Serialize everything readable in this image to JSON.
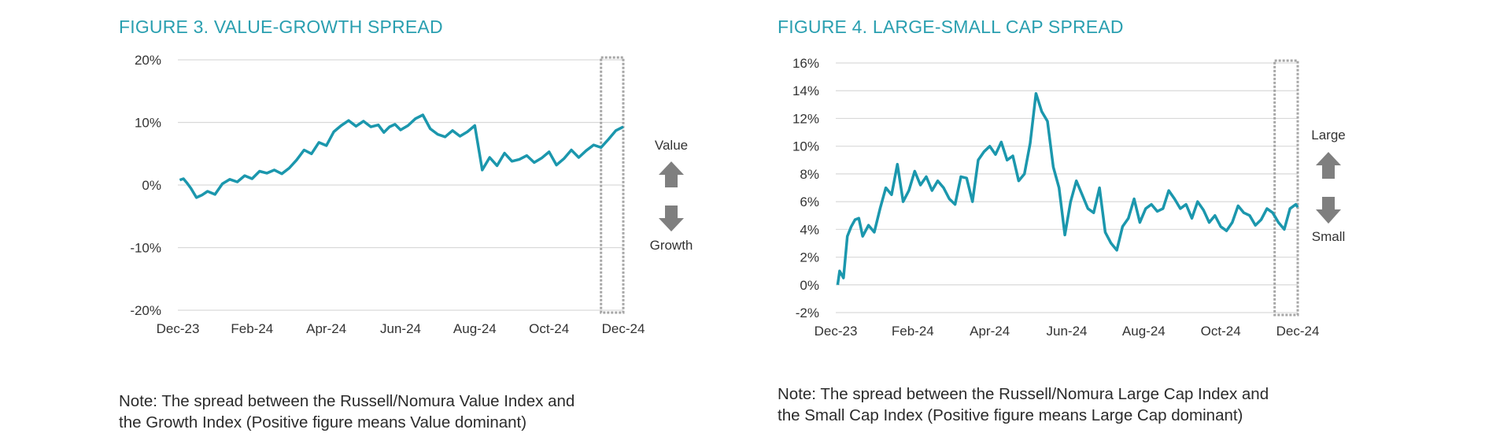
{
  "colors": {
    "title": "#2a9fb0",
    "line": "#1b97ad",
    "grid": "#d9d9d9",
    "box": "#a6a6a6",
    "arrow": "#7f7f7f"
  },
  "figures": [
    {
      "title": "FIGURE 3. VALUE-GROWTH SPREAD",
      "note_line1": "Note: The spread between the Russell/Nomura Value Index and",
      "note_line2": "the Growth Index (Positive figure means Value dominant)",
      "up_label": "Value",
      "down_label": "Growth",
      "up_icon": "arrow-up-icon",
      "down_icon": "arrow-down-icon"
    },
    {
      "title": "FIGURE 4. LARGE-SMALL CAP SPREAD",
      "note_line1": "Note: The spread between the Russell/Nomura Large Cap Index and",
      "note_line2": "the Small Cap Index (Positive figure means Large Cap dominant)",
      "up_label": "Large",
      "down_label": "Small",
      "up_icon": "arrow-up-icon",
      "down_icon": "arrow-down-icon"
    }
  ],
  "chart_data": [
    {
      "type": "line",
      "title": "FIGURE 3. VALUE-GROWTH SPREAD",
      "xlabel": "",
      "ylabel": "",
      "x_tick_labels": [
        "Dec-23",
        "Feb-24",
        "Apr-24",
        "Jun-24",
        "Aug-24",
        "Oct-24",
        "Dec-24"
      ],
      "y_tick_values": [
        20,
        10,
        0,
        -10,
        -20
      ],
      "y_tick_labels": [
        "20%",
        "10%",
        "0%",
        "-10%",
        "-20%"
      ],
      "ylim": [
        -20,
        20
      ],
      "xlim_months": [
        0,
        12
      ],
      "grid": true,
      "highlight_months": [
        11.4,
        12.0
      ],
      "series": [
        {
          "name": "Value-Growth spread (%)",
          "x_months": [
            0.05,
            0.15,
            0.25,
            0.35,
            0.5,
            0.65,
            0.8,
            1.0,
            1.2,
            1.4,
            1.6,
            1.8,
            2.0,
            2.2,
            2.4,
            2.6,
            2.8,
            3.0,
            3.2,
            3.4,
            3.6,
            3.8,
            4.0,
            4.2,
            4.4,
            4.6,
            4.8,
            5.0,
            5.2,
            5.4,
            5.55,
            5.7,
            5.85,
            6.0,
            6.2,
            6.4,
            6.6,
            6.8,
            7.0,
            7.2,
            7.4,
            7.6,
            7.8,
            8.0,
            8.2,
            8.4,
            8.6,
            8.8,
            9.0,
            9.2,
            9.4,
            9.6,
            9.8,
            10.0,
            10.2,
            10.4,
            10.6,
            10.8,
            11.0,
            11.2,
            11.4,
            11.6,
            11.8,
            12.0
          ],
          "values": [
            0.8,
            1.0,
            0.3,
            -0.5,
            -2.0,
            -1.6,
            -1.0,
            -1.5,
            0.2,
            0.9,
            0.5,
            1.5,
            1.0,
            2.2,
            1.9,
            2.4,
            1.8,
            2.7,
            4.0,
            5.6,
            5.0,
            6.8,
            6.3,
            8.5,
            9.5,
            10.3,
            9.4,
            10.2,
            9.3,
            9.6,
            8.4,
            9.3,
            9.7,
            8.8,
            9.5,
            10.6,
            11.2,
            9.0,
            8.1,
            7.7,
            8.7,
            7.8,
            8.5,
            9.5,
            2.4,
            4.4,
            3.1,
            5.1,
            3.8,
            4.1,
            4.7,
            3.6,
            4.3,
            5.3,
            3.2,
            4.2,
            5.6,
            4.4,
            5.5,
            6.4,
            6.0,
            7.3,
            8.7,
            9.3
          ]
        }
      ]
    },
    {
      "type": "line",
      "title": "FIGURE 4. LARGE-SMALL CAP SPREAD",
      "xlabel": "",
      "ylabel": "",
      "x_tick_labels": [
        "Dec-23",
        "Feb-24",
        "Apr-24",
        "Jun-24",
        "Aug-24",
        "Oct-24",
        "Dec-24"
      ],
      "y_tick_values": [
        16,
        14,
        12,
        10,
        8,
        6,
        4,
        2,
        0,
        -2
      ],
      "y_tick_labels": [
        "16%",
        "14%",
        "12%",
        "10%",
        "8%",
        "6%",
        "4%",
        "2%",
        "0%",
        "-2%"
      ],
      "ylim": [
        -2,
        16
      ],
      "xlim_months": [
        0,
        12
      ],
      "grid": true,
      "highlight_months": [
        11.4,
        12.0
      ],
      "series": [
        {
          "name": "Large-Small spread (%)",
          "x_months": [
            0.05,
            0.1,
            0.2,
            0.3,
            0.4,
            0.5,
            0.6,
            0.7,
            0.85,
            1.0,
            1.15,
            1.3,
            1.45,
            1.6,
            1.75,
            1.9,
            2.05,
            2.2,
            2.35,
            2.5,
            2.65,
            2.8,
            2.95,
            3.1,
            3.25,
            3.4,
            3.55,
            3.7,
            3.85,
            4.0,
            4.15,
            4.3,
            4.45,
            4.6,
            4.75,
            4.9,
            5.05,
            5.2,
            5.35,
            5.5,
            5.65,
            5.8,
            5.95,
            6.1,
            6.25,
            6.4,
            6.55,
            6.7,
            6.85,
            7.0,
            7.15,
            7.3,
            7.45,
            7.6,
            7.75,
            7.9,
            8.05,
            8.2,
            8.35,
            8.5,
            8.65,
            8.8,
            8.95,
            9.1,
            9.25,
            9.4,
            9.55,
            9.7,
            9.85,
            10.0,
            10.15,
            10.3,
            10.45,
            10.6,
            10.75,
            10.9,
            11.05,
            11.2,
            11.35,
            11.5,
            11.65,
            11.8,
            11.95,
            12.0
          ],
          "values": [
            0.0,
            1.0,
            0.5,
            3.5,
            4.2,
            4.7,
            4.8,
            3.5,
            4.3,
            3.8,
            5.5,
            7.0,
            6.5,
            8.7,
            6.0,
            6.8,
            8.2,
            7.2,
            7.8,
            6.8,
            7.5,
            7.0,
            6.2,
            5.8,
            7.8,
            7.7,
            6.0,
            9.0,
            9.6,
            10.0,
            9.4,
            10.3,
            9.0,
            9.3,
            7.5,
            8.0,
            10.2,
            13.8,
            12.5,
            11.8,
            8.5,
            7.0,
            3.6,
            6.0,
            7.5,
            6.5,
            5.5,
            5.2,
            7.0,
            3.8,
            3.0,
            2.5,
            4.2,
            4.8,
            6.2,
            4.5,
            5.5,
            5.8,
            5.3,
            5.5,
            6.8,
            6.2,
            5.5,
            5.8,
            4.8,
            6.0,
            5.4,
            4.5,
            5.0,
            4.2,
            3.9,
            4.5,
            5.7,
            5.2,
            5.0,
            4.3,
            4.7,
            5.5,
            5.2,
            4.5,
            4.0,
            5.5,
            5.8,
            5.6
          ]
        }
      ]
    }
  ]
}
